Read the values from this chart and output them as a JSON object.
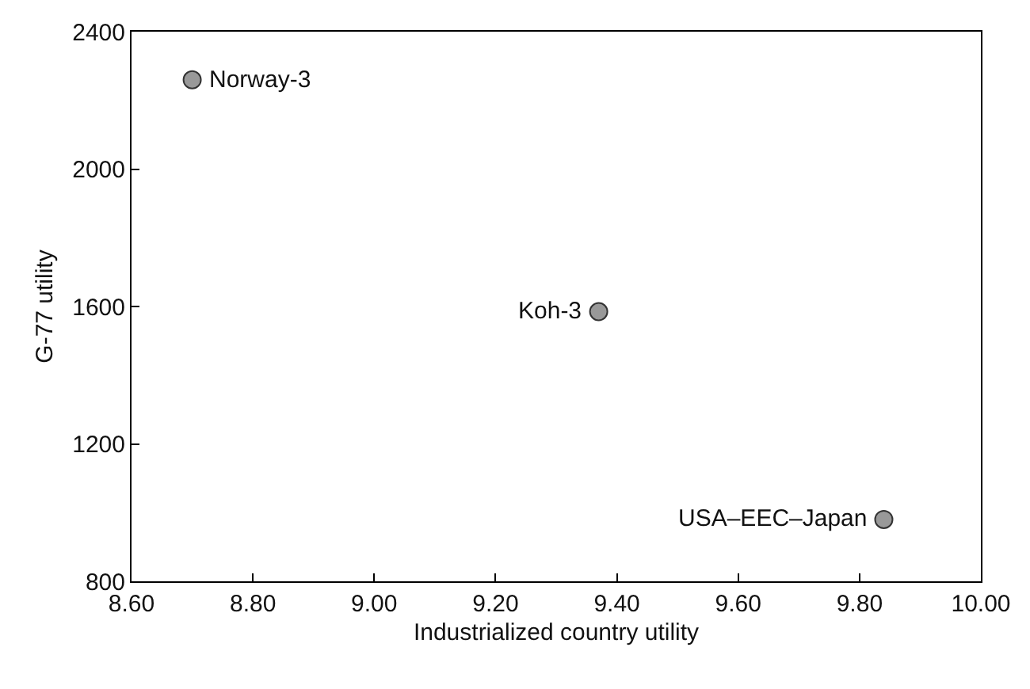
{
  "chart_data": {
    "type": "scatter",
    "xlabel": "Industrialized country utility",
    "ylabel": "G-77 utility",
    "x": [
      8.7,
      9.37,
      9.84
    ],
    "values": [
      2260,
      1585,
      980
    ],
    "color": "#999999",
    "marker": "circle",
    "xlim": [
      8.6,
      10.0
    ],
    "xticks": [
      {
        "value": 8.6,
        "label": "8.60"
      },
      {
        "value": 8.8,
        "label": "8.80"
      },
      {
        "value": 9.0,
        "label": "9.00"
      },
      {
        "value": 9.2,
        "label": "9.20"
      },
      {
        "value": 9.4,
        "label": "9.40"
      },
      {
        "value": 9.6,
        "label": "9.60"
      },
      {
        "value": 9.8,
        "label": "9.80"
      },
      {
        "value": 10.0,
        "label": "10.00"
      }
    ],
    "ylim": [
      800,
      2400
    ],
    "yticks": [
      800,
      1200,
      1600,
      2000,
      2400
    ],
    "grid": false,
    "annotations": [
      {
        "text": "Norway-3",
        "x": 8.7,
        "y": 2260
      },
      {
        "text": "Koh-3",
        "x": 9.37,
        "y": 1585
      },
      {
        "text": "USA–EEC–Japan",
        "x": 9.84,
        "y": 980
      }
    ]
  }
}
